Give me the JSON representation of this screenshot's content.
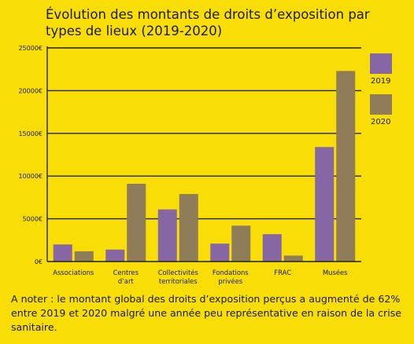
{
  "chart_data": {
    "type": "bar",
    "title": "Évolution des montants de droits d’exposition par types de lieux (2019-2020)",
    "categories": [
      [
        "Associations"
      ],
      [
        "Centres",
        "d’art"
      ],
      [
        "Collectivités",
        "territoriales"
      ],
      [
        "Fondations",
        "privées"
      ],
      [
        "FRAC"
      ],
      [
        "Musées"
      ]
    ],
    "series": [
      {
        "name": "2019",
        "color": "#8667a3",
        "values": [
          2000,
          1400,
          6100,
          2100,
          3200,
          13400
        ]
      },
      {
        "name": "2020",
        "color": "#8e7d58",
        "values": [
          1200,
          9100,
          7900,
          4200,
          700,
          22300
        ]
      }
    ],
    "ylim": [
      0,
      25000
    ],
    "yticks": [
      0,
      5000,
      10000,
      15000,
      20000,
      25000
    ],
    "ytick_labels": [
      "0€",
      "5000€",
      "10000€",
      "15000€",
      "20000€",
      "25000€"
    ],
    "grid": true,
    "legend": "right"
  },
  "note": "A noter : le montant global des droits d’exposition perçus a augmenté de 62% entre 2019 et 2020 malgré une année peu représentative en raison de la crise sanitaire."
}
